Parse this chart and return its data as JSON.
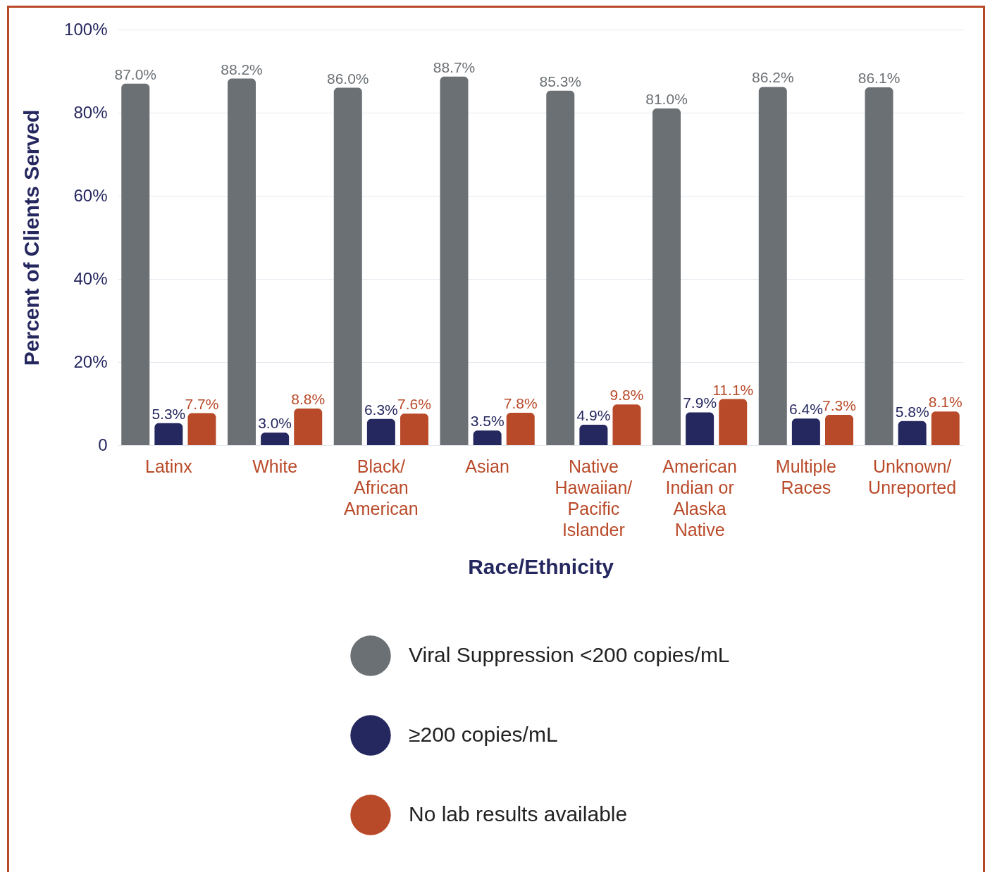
{
  "chart_data": {
    "type": "bar",
    "xlabel": "Race/Ethnicity",
    "ylabel": "Percent of Clients Served",
    "categories": [
      "Latinx",
      "White",
      "Black/\nAfrican\nAmerican",
      "Asian",
      "Native\nHawaiian/\nPacific\nIslander",
      "American\nIndian or\nAlaska\nNative",
      "Multiple\nRaces",
      "Unknown/\nUnreported"
    ],
    "series": [
      {
        "name": "Viral Suppression <200 copies/mL",
        "color": "#6b7074",
        "values": [
          87.0,
          88.2,
          86.0,
          88.7,
          85.3,
          81.0,
          86.2,
          86.1
        ],
        "value_labels": [
          "87.0%",
          "88.2%",
          "86.0%",
          "88.7%",
          "85.3%",
          "81.0%",
          "86.2%",
          "86.1%"
        ]
      },
      {
        "name": "≥200 copies/mL",
        "color": "#25275f",
        "values": [
          5.3,
          3.0,
          6.3,
          3.5,
          4.9,
          7.9,
          6.4,
          5.8
        ],
        "value_labels": [
          "5.3%",
          "3.0%",
          "6.3%",
          "3.5%",
          "4.9%",
          "7.9%",
          "6.4%",
          "5.8%"
        ]
      },
      {
        "name": "No lab results available",
        "color": "#b94a29",
        "values": [
          7.7,
          8.8,
          7.6,
          7.8,
          9.8,
          11.1,
          7.3,
          8.1
        ],
        "value_labels": [
          "7.7%",
          "8.8%",
          "7.6%",
          "7.8%",
          "9.8%",
          "11.1%",
          "7.3%",
          "8.1%"
        ]
      }
    ],
    "ylim": [
      0,
      100
    ],
    "yticks": [
      {
        "value": 0,
        "label": "0"
      },
      {
        "value": 20,
        "label": "20%"
      },
      {
        "value": 40,
        "label": "40%"
      },
      {
        "value": 60,
        "label": "60%"
      },
      {
        "value": 80,
        "label": "80%"
      },
      {
        "value": 100,
        "label": "100%"
      }
    ],
    "grid": "y",
    "legend": "bottom"
  }
}
